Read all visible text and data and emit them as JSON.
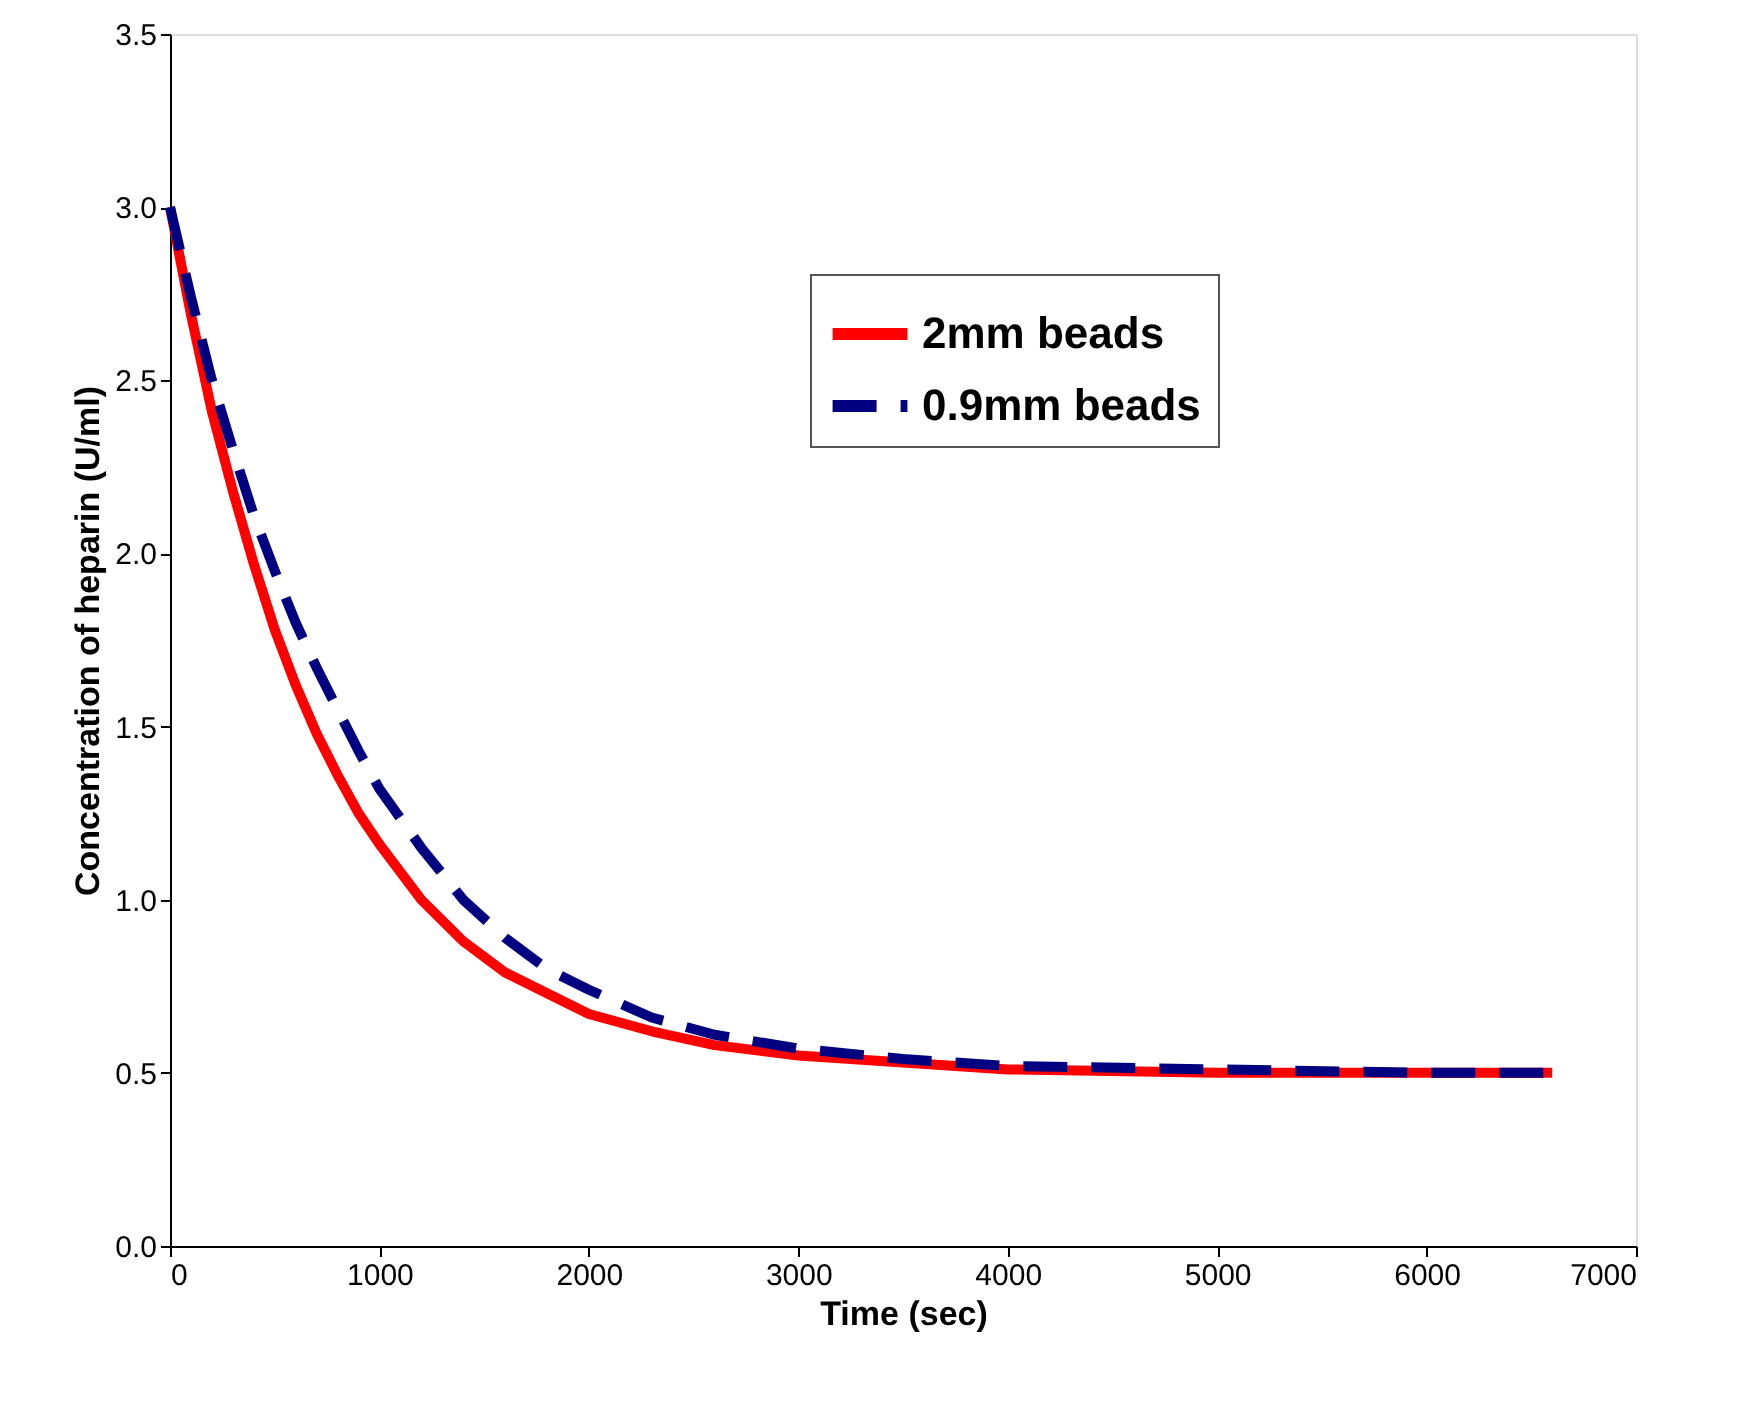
{
  "chart_data": {
    "type": "line",
    "xlabel": "Time (sec)",
    "ylabel": "Concentration of heparin (U/ml)",
    "xlim": [
      0,
      7000
    ],
    "xticks": [
      0,
      1000,
      2000,
      3000,
      4000,
      5000,
      6000,
      7000
    ],
    "ylim": [
      0,
      3.5
    ],
    "yticks": [
      {
        "value": 0,
        "label": "0.0"
      },
      0.5,
      {
        "value": 1,
        "label": "1.0"
      },
      1.5,
      {
        "value": 2,
        "label": "2.0"
      },
      2.5,
      {
        "value": 3,
        "label": "3.0"
      },
      3.5
    ],
    "grid": false,
    "legend": "right",
    "marker": "none",
    "series": [
      {
        "name": "2mm beads",
        "color": "#ff0000",
        "line_style": "solid",
        "x": [
          0,
          100,
          200,
          300,
          400,
          500,
          600,
          700,
          800,
          900,
          1000,
          1200,
          1400,
          1600,
          1800,
          2000,
          2300,
          2600,
          3000,
          3500,
          4000,
          5000,
          6000,
          6600
        ],
        "values": [
          3.0,
          2.69,
          2.41,
          2.18,
          1.97,
          1.78,
          1.62,
          1.48,
          1.36,
          1.25,
          1.16,
          1.0,
          0.88,
          0.79,
          0.73,
          0.67,
          0.62,
          0.58,
          0.55,
          0.53,
          0.51,
          0.5,
          0.5,
          0.5
        ]
      },
      {
        "name": "0.9mm beads",
        "color": "#000080",
        "line_style": "dashed",
        "x": [
          0,
          100,
          200,
          300,
          400,
          500,
          600,
          700,
          800,
          900,
          1000,
          1200,
          1400,
          1600,
          1800,
          2000,
          2300,
          2600,
          3000,
          3500,
          4000,
          5000,
          6000,
          6600
        ],
        "values": [
          3.0,
          2.74,
          2.5,
          2.3,
          2.11,
          1.95,
          1.8,
          1.67,
          1.55,
          1.43,
          1.32,
          1.15,
          1.0,
          0.89,
          0.8,
          0.74,
          0.66,
          0.61,
          0.57,
          0.54,
          0.52,
          0.51,
          0.5,
          0.5
        ]
      }
    ]
  }
}
